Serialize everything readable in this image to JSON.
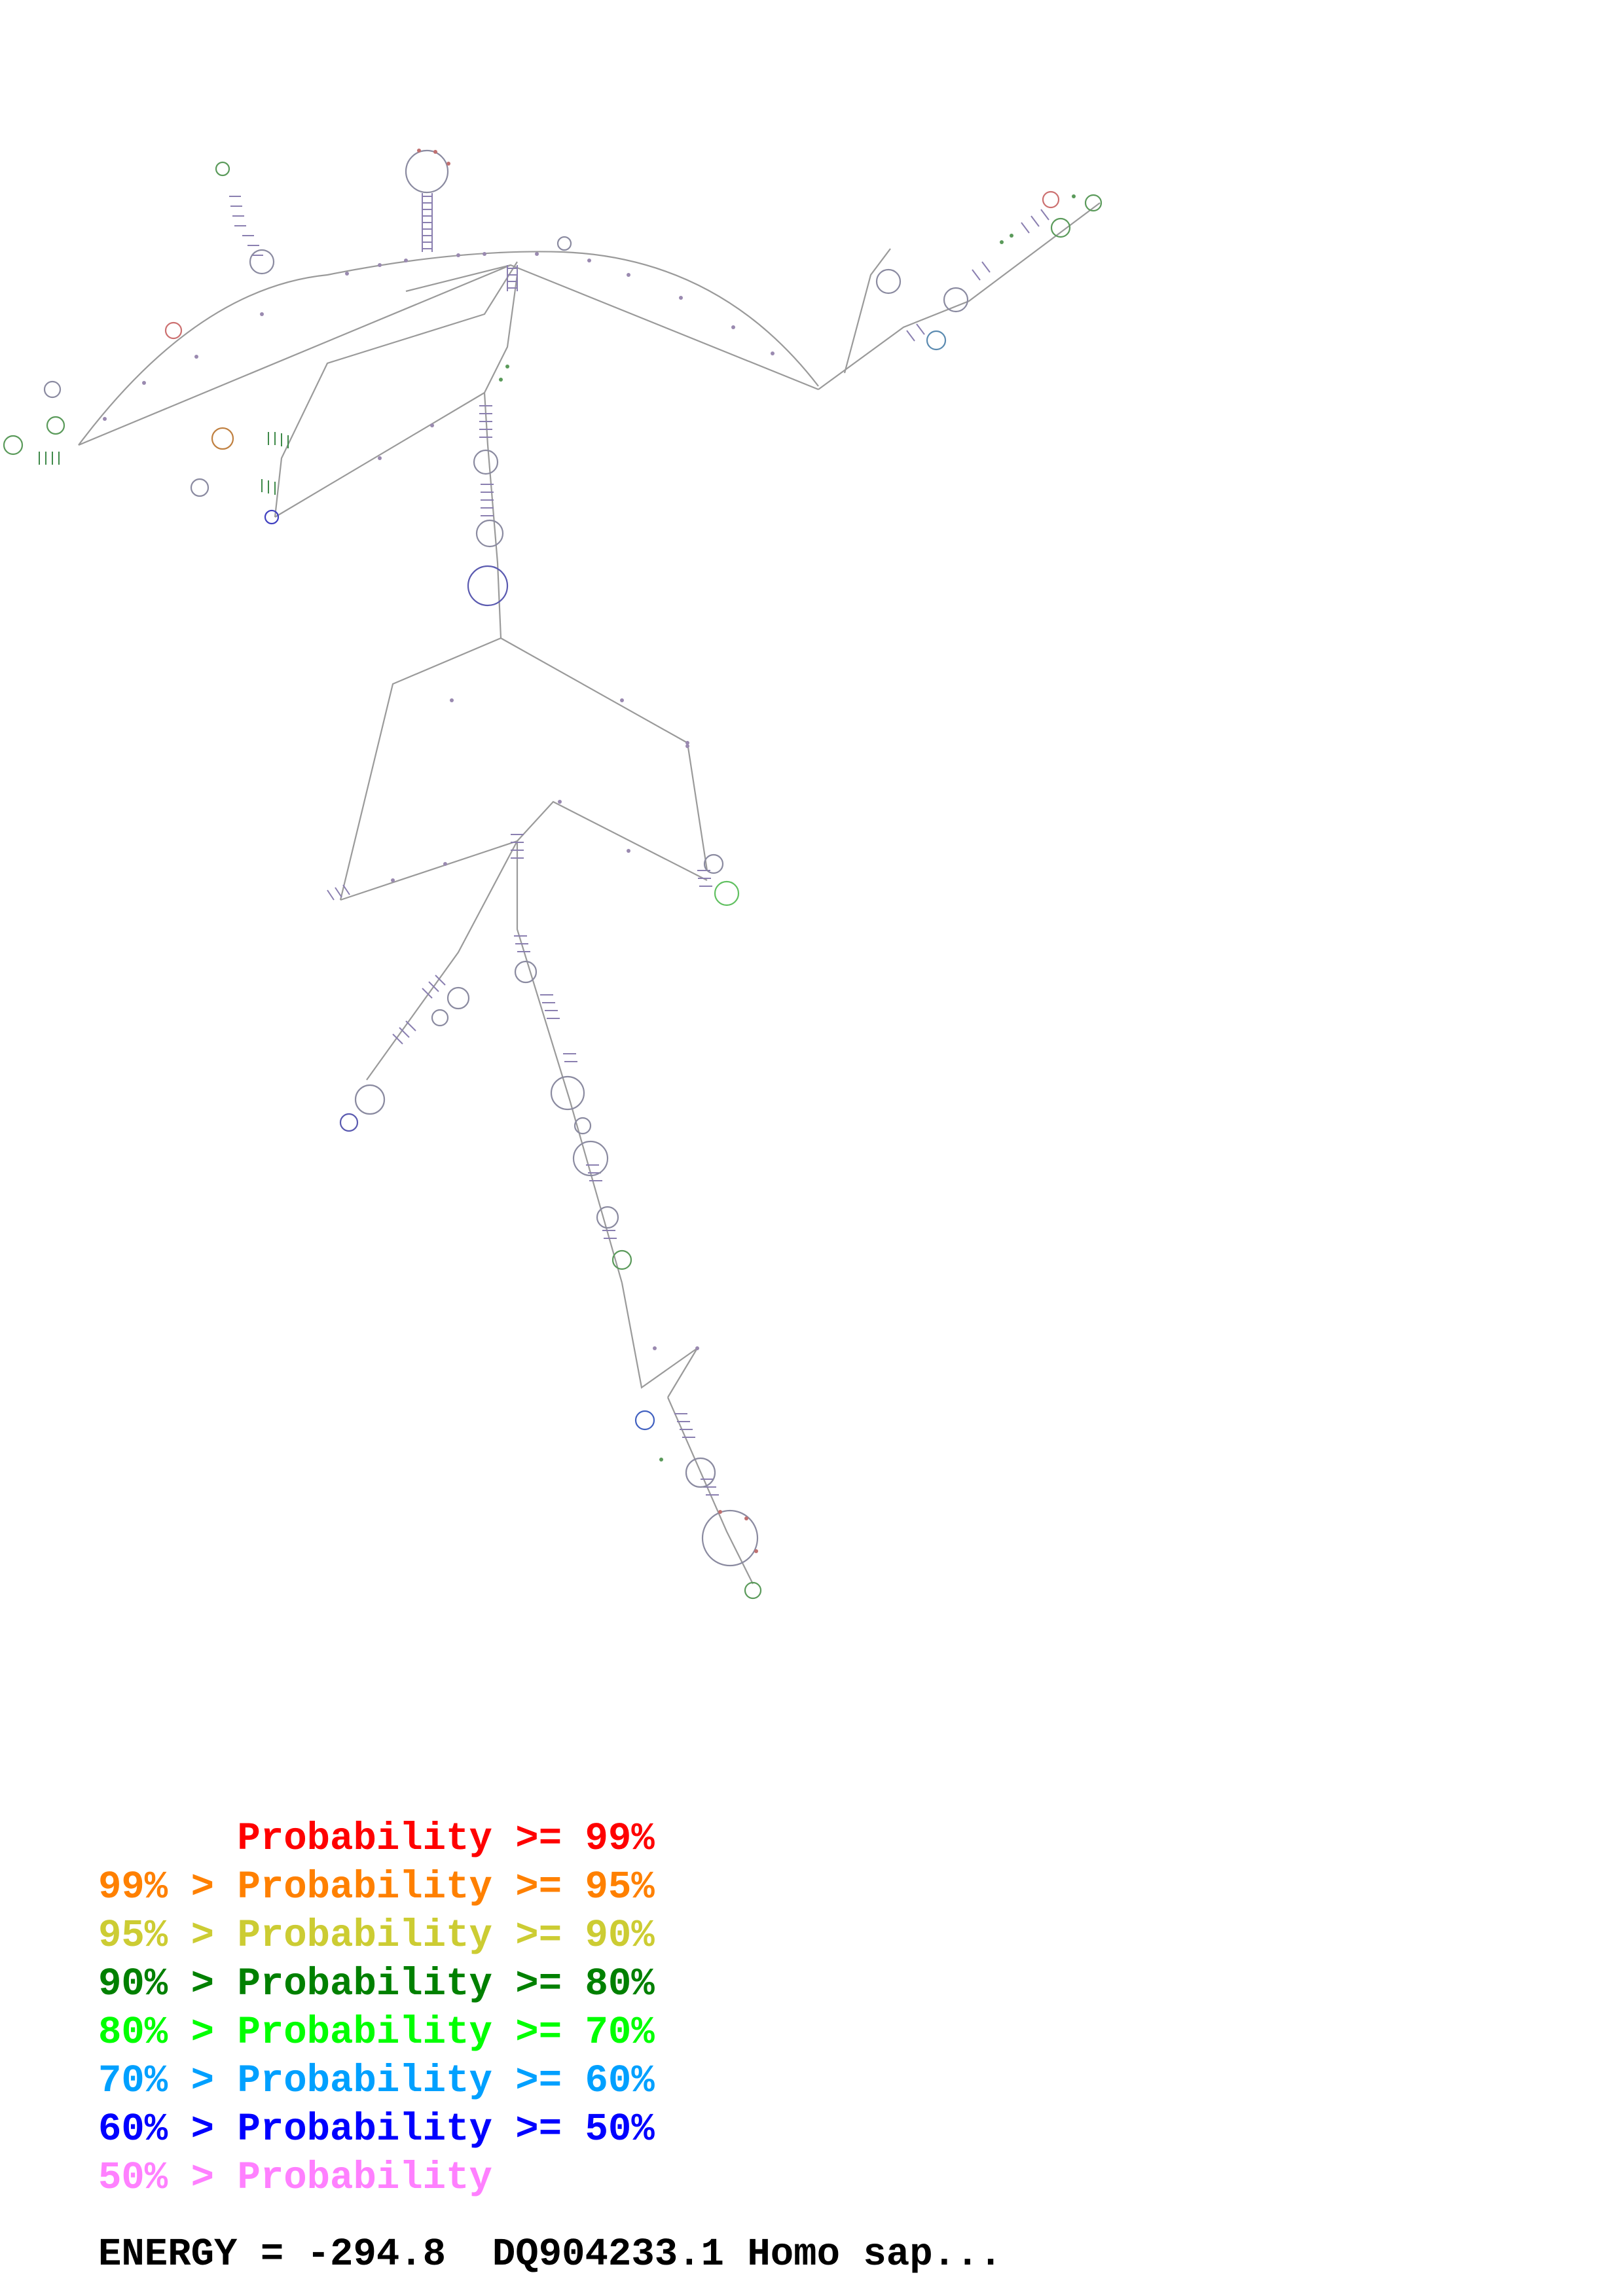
{
  "legend": [
    {
      "prefix": "",
      "label": "Probability",
      "suffix": " >= 99%",
      "color": "#ff0000"
    },
    {
      "prefix": "99% > ",
      "label": "Probability",
      "suffix": " >= 95%",
      "color": "#ff8000"
    },
    {
      "prefix": "95% > ",
      "label": "Probability",
      "suffix": " >= 90%",
      "color": "#cccc33"
    },
    {
      "prefix": "90% > ",
      "label": "Probability",
      "suffix": " >= 80%",
      "color": "#008000"
    },
    {
      "prefix": "80% > ",
      "label": "Probability",
      "suffix": " >= 70%",
      "color": "#00ff00"
    },
    {
      "prefix": "70% > ",
      "label": "Probability",
      "suffix": " >= 60%",
      "color": "#00a0ff"
    },
    {
      "prefix": "60% > ",
      "label": "Probability",
      "suffix": " >= 50%",
      "color": "#0000ff"
    },
    {
      "prefix": "50% > ",
      "label": "Probability",
      "suffix": "",
      "color": "#ff80ff"
    }
  ],
  "energy_label": "ENERGY = -294.8  DQ904233.1 Homo sap...",
  "structure": {
    "backbone_color": "#9a9a9a",
    "base_colors": [
      "#ff80ff",
      "#0000ff",
      "#00a0ff",
      "#008000",
      "#00ff00",
      "#cccc33",
      "#ff8000",
      "#ff0000"
    ]
  }
}
